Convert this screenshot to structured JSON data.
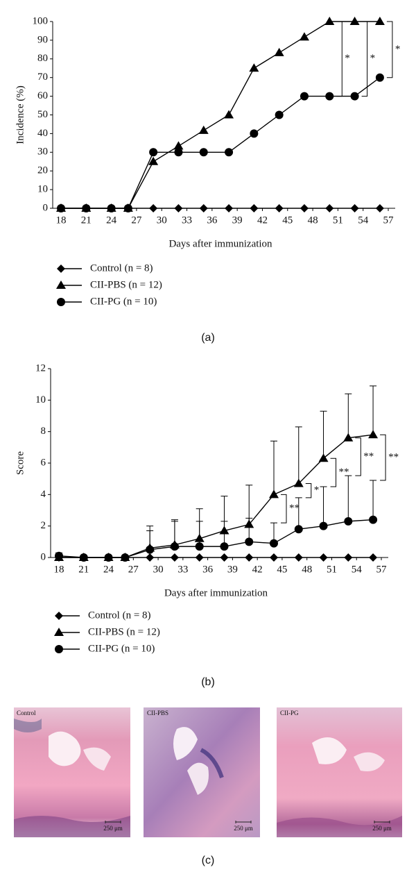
{
  "chart_data": [
    {
      "type": "line",
      "ylabel": "Incidence (%)",
      "xlabel": "Days after immunization",
      "x": [
        18,
        21,
        24,
        26,
        29,
        32,
        35,
        38,
        41,
        44,
        47,
        50,
        53,
        56
      ],
      "series": [
        {
          "name": "Control (n = 8)",
          "color": "#000000",
          "marker": "diamond",
          "values": [
            0,
            0,
            0,
            0,
            0,
            0,
            0,
            0,
            0,
            0,
            0,
            0,
            0,
            0
          ]
        },
        {
          "name": "CII-PBS (n = 12)",
          "color": "#000000",
          "marker": "triangle",
          "values": [
            0,
            0,
            0,
            0,
            25,
            33.3,
            41.7,
            50,
            75,
            83.3,
            91.7,
            100,
            100,
            100
          ]
        },
        {
          "name": "CII-PG (n = 10)",
          "color": "#000000",
          "marker": "circle",
          "values": [
            0,
            0,
            0,
            0,
            30,
            30,
            30,
            30,
            40,
            50,
            60,
            60,
            60,
            70
          ]
        }
      ],
      "annotations": [
        "*",
        "*",
        "*"
      ],
      "xlim": [
        18,
        57
      ],
      "xticks": [
        18,
        21,
        24,
        27,
        30,
        33,
        36,
        39,
        42,
        45,
        48,
        51,
        54,
        57
      ],
      "ylim": [
        0,
        100
      ],
      "yticks": [
        0,
        10,
        20,
        30,
        40,
        50,
        60,
        70,
        80,
        90,
        100
      ]
    },
    {
      "type": "line",
      "ylabel": "Score",
      "xlabel": "Days after immunization",
      "x": [
        18,
        21,
        24,
        26,
        29,
        32,
        35,
        38,
        41,
        44,
        47,
        50,
        53,
        56
      ],
      "series": [
        {
          "name": "Control (n = 8)",
          "color": "#000000",
          "marker": "diamond",
          "values": [
            0,
            0,
            0,
            0,
            0,
            0,
            0,
            0,
            0,
            0,
            0,
            0,
            0,
            0
          ]
        },
        {
          "name": "CII-PBS (n = 12)",
          "color": "#000000",
          "marker": "triangle",
          "values": [
            0,
            0,
            0,
            0,
            0.6,
            0.8,
            1.2,
            1.7,
            2.1,
            4.0,
            4.7,
            6.3,
            7.6,
            7.8
          ],
          "errors": [
            0,
            0,
            0,
            0,
            1.4,
            1.6,
            1.9,
            2.2,
            2.5,
            3.4,
            3.6,
            3.0,
            2.8,
            3.1
          ]
        },
        {
          "name": "CII-PG (n = 10)",
          "color": "#000000",
          "marker": "circle",
          "values": [
            0.1,
            0,
            0,
            0,
            0.5,
            0.7,
            0.7,
            0.7,
            1.0,
            0.9,
            1.8,
            2.0,
            2.3,
            2.4
          ],
          "errors": [
            0.2,
            0,
            0,
            0,
            1.2,
            1.6,
            1.6,
            1.6,
            1.5,
            1.3,
            2.0,
            2.5,
            2.9,
            2.5
          ]
        }
      ],
      "annotations": [
        "**",
        "*",
        "**",
        "**",
        "**"
      ],
      "xlim": [
        18,
        57
      ],
      "xticks": [
        18,
        21,
        24,
        27,
        30,
        33,
        36,
        39,
        42,
        45,
        48,
        51,
        54,
        57
      ],
      "ylim": [
        0,
        12
      ],
      "yticks": [
        0,
        2,
        4,
        6,
        8,
        10,
        12
      ]
    }
  ],
  "panels": [
    "(a)",
    "(b)",
    "(c)"
  ],
  "images": [
    {
      "label": "Control",
      "scale": "250 μm"
    },
    {
      "label": "CII-PBS",
      "scale": "250 μm"
    },
    {
      "label": "CII-PG",
      "scale": "250 μm"
    }
  ]
}
